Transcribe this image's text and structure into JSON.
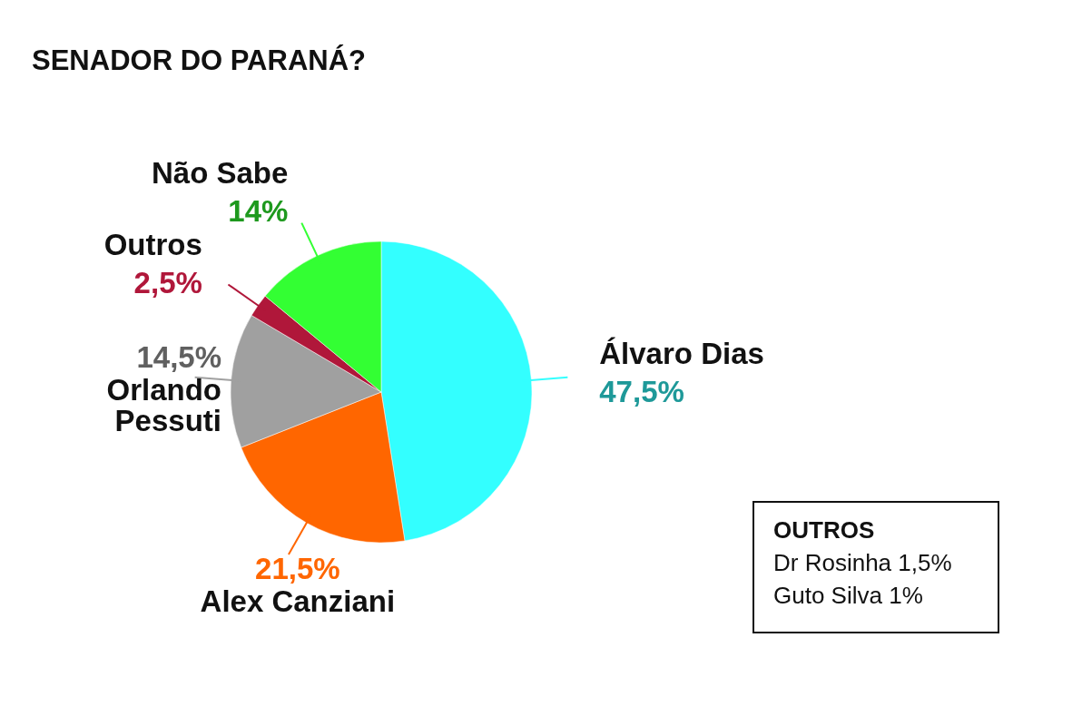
{
  "chart_data": {
    "type": "pie",
    "title": "SENADOR DO PARANÁ?",
    "categories": [
      "Álvaro Dias",
      "Alex Canziani",
      "Orlando Pessuti",
      "Outros",
      "Não Sabe"
    ],
    "values": [
      47.5,
      21.5,
      14.5,
      2.5,
      14
    ],
    "colors": [
      "#33ffff",
      "#ff6600",
      "#a0a0a0",
      "#b0173a",
      "#33ff33"
    ],
    "value_labels": [
      "47,5%",
      "21,5%",
      "14,5%",
      "2,5%",
      "14%"
    ],
    "annotations": [
      "OUTROS",
      "Dr Rosinha 1,5%",
      "Guto Silva 1%"
    ]
  }
}
